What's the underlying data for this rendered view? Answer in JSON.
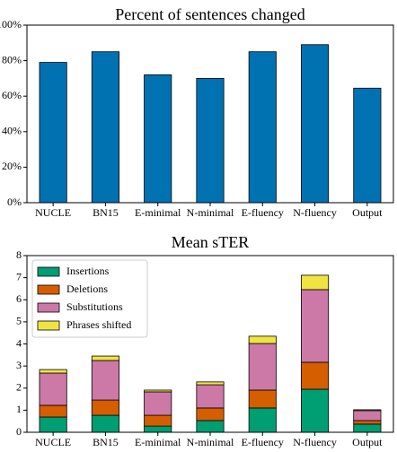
{
  "chart_data": [
    {
      "type": "bar",
      "title": "Percent of sentences changed",
      "categories": [
        "NUCLE",
        "BN15",
        "E-minimal",
        "N-minimal",
        "E-fluency",
        "N-fluency",
        "Output"
      ],
      "values": [
        79,
        85,
        72,
        70,
        85,
        89,
        64.5
      ],
      "color": "#0072b2",
      "ylim": [
        0,
        100
      ],
      "yticks": [
        {
          "value": 0,
          "label": "0%"
        },
        {
          "value": 20,
          "label": "20%"
        },
        {
          "value": 40,
          "label": "40%"
        },
        {
          "value": 60,
          "label": "60%"
        },
        {
          "value": 80,
          "label": "80%"
        },
        {
          "value": 100,
          "label": "100%"
        }
      ]
    },
    {
      "type": "stacked_bar",
      "title": "Mean sTER",
      "categories": [
        "NUCLE",
        "BN15",
        "E-minimal",
        "N-minimal",
        "E-fluency",
        "N-fluency",
        "Output"
      ],
      "series": [
        {
          "name": "Insertions",
          "color": "#009e73",
          "values": [
            0.69,
            0.77,
            0.28,
            0.53,
            1.1,
            1.95,
            0.37
          ]
        },
        {
          "name": "Deletions",
          "color": "#d55e00",
          "values": [
            0.53,
            0.69,
            0.49,
            0.57,
            0.81,
            1.22,
            0.16
          ]
        },
        {
          "name": "Substitutions",
          "color": "#cc79a7",
          "values": [
            1.46,
            1.79,
            1.06,
            1.05,
            2.11,
            3.29,
            0.45
          ]
        },
        {
          "name": "Phrases shifted",
          "color": "#f0e442",
          "values": [
            0.16,
            0.2,
            0.08,
            0.13,
            0.33,
            0.65,
            0.04
          ]
        }
      ],
      "ylim": [
        0,
        8
      ],
      "yticks": [
        0,
        1,
        2,
        3,
        4,
        5,
        6,
        7,
        8
      ],
      "legend": "upper left"
    }
  ]
}
